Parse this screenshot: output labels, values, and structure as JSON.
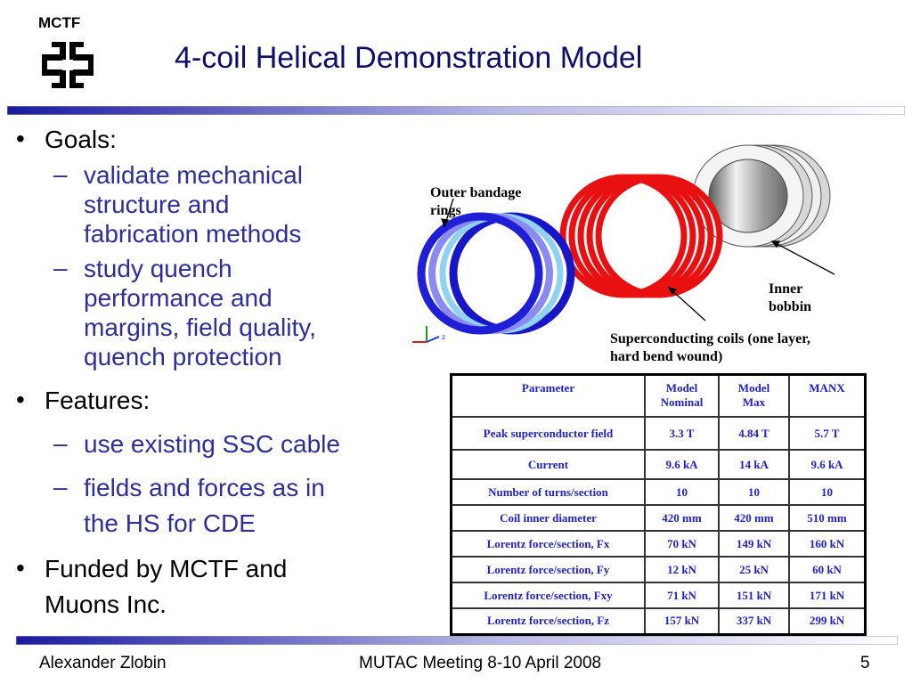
{
  "header": {
    "logo_label": "MCTF",
    "title": "4-coil Helical Demonstration Model"
  },
  "bullets": {
    "goals": "Goals:",
    "goal_items": [
      [
        "validate mechanical",
        "structure and",
        "fabrication methods"
      ],
      [
        "study quench",
        "performance and",
        "margins, field quality,",
        "quench protection"
      ]
    ],
    "features": "Features:",
    "feature_items": [
      [
        "use existing SSC cable"
      ],
      [
        "fields and forces as in",
        "the HS for CDE"
      ]
    ],
    "funded": [
      "Funded by MCTF and",
      "Muons Inc."
    ]
  },
  "figure": {
    "outer_label": [
      "Outer bandage",
      "rings"
    ],
    "inner_label": [
      "Inner",
      "bobbin"
    ],
    "coils_label": [
      "Superconducting coils (one layer,",
      "hard bend wound)"
    ],
    "axis_label": "z"
  },
  "table": {
    "headers": [
      [
        "Parameter"
      ],
      [
        "Model",
        "Nominal"
      ],
      [
        "Model",
        "Max"
      ],
      [
        "MANX"
      ]
    ],
    "rows": [
      [
        "Peak superconductor field",
        "3.3 T",
        "4.84 T",
        "5.7 T"
      ],
      [
        "Current",
        "9.6 kA",
        "14 kA",
        "9.6 kA"
      ],
      [
        "Number of turns/section",
        "10",
        "10",
        "10"
      ],
      [
        "Coil inner diameter",
        "420 mm",
        "420 mm",
        "510 mm"
      ],
      [
        "Lorentz force/section, Fx",
        "70 kN",
        "149 kN",
        "160 kN"
      ],
      [
        "Lorentz force/section, Fy",
        "12 kN",
        "25 kN",
        "60 kN"
      ],
      [
        "Lorentz force/section, Fxy",
        "71 kN",
        "151 kN",
        "171 kN"
      ],
      [
        "Lorentz force/section, Fz",
        "157 kN",
        "337 kN",
        "299 kN"
      ]
    ]
  },
  "footer": {
    "author": "Alexander Zlobin",
    "meeting": "MUTAC Meeting 8-10 April 2008",
    "page": "5"
  },
  "colors": {
    "title": "#0d0d6b",
    "sub_bullets": "#2e2e9a",
    "table_text": "#2121c7",
    "bar_start": "#1a1aa0",
    "bar_end": "#ffffff"
  }
}
